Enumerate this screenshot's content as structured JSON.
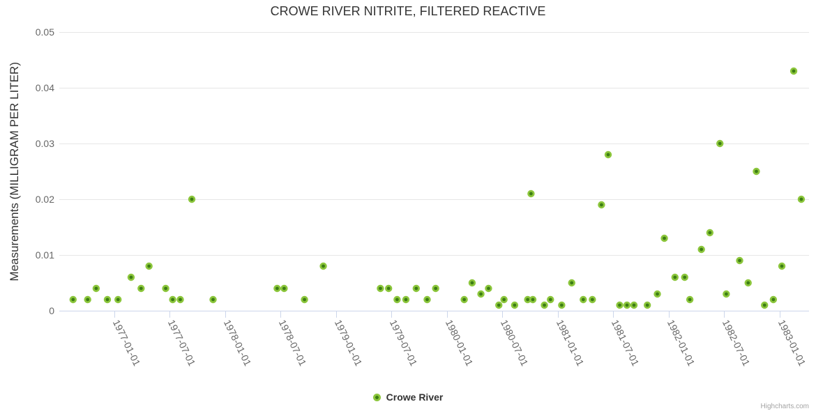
{
  "title": "CROWE RIVER NITRITE, FILTERED REACTIVE",
  "credits": "Highcharts.com",
  "colors": {
    "marker_outer": "#8cc63c",
    "marker_inner": "#3c7d14",
    "grid_line": "#e6e6e6",
    "axis_line": "#ccd6eb",
    "tick_label": "#666666",
    "title_text": "#333333"
  },
  "chart_data": {
    "type": "scatter",
    "title": "CROWE RIVER NITRITE, FILTERED REACTIVE",
    "xlabel": "",
    "ylabel": "Measurements (MILLIGRAM PER LITER)",
    "ylim": [
      0,
      0.05
    ],
    "grid": "horizontal",
    "legend_position": "bottom-center",
    "yticks": [
      {
        "v": 0,
        "label": "0"
      },
      {
        "v": 0.01,
        "label": "0.01"
      },
      {
        "v": 0.02,
        "label": "0.02"
      },
      {
        "v": 0.03,
        "label": "0.03"
      },
      {
        "v": 0.04,
        "label": "0.04"
      },
      {
        "v": 0.05,
        "label": "0.05"
      }
    ],
    "xticks": [
      "1977-01-01",
      "1977-07-01",
      "1978-01-01",
      "1978-07-01",
      "1979-01-01",
      "1979-07-01",
      "1980-01-01",
      "1980-07-01",
      "1981-01-01",
      "1981-07-01",
      "1982-01-01",
      "1982-07-01",
      "1983-01-01"
    ],
    "series": [
      {
        "name": "Crowe River",
        "points": [
          [
            "1976-08-18",
            0.002
          ],
          [
            "1976-10-05",
            0.002
          ],
          [
            "1976-11-02",
            0.004
          ],
          [
            "1976-12-09",
            0.002
          ],
          [
            "1977-01-13",
            0.002
          ],
          [
            "1977-02-25",
            0.006
          ],
          [
            "1977-03-30",
            0.004
          ],
          [
            "1977-04-25",
            0.008
          ],
          [
            "1977-06-19",
            0.004
          ],
          [
            "1977-07-12",
            0.002
          ],
          [
            "1977-08-06",
            0.002
          ],
          [
            "1977-09-13",
            0.02
          ],
          [
            "1977-11-22",
            0.002
          ],
          [
            "1978-06-21",
            0.004
          ],
          [
            "1978-07-14",
            0.004
          ],
          [
            "1978-09-19",
            0.002
          ],
          [
            "1978-11-20",
            0.008
          ],
          [
            "1979-05-27",
            0.004
          ],
          [
            "1979-06-23",
            0.004
          ],
          [
            "1979-07-21",
            0.002
          ],
          [
            "1979-08-19",
            0.002
          ],
          [
            "1979-09-22",
            0.004
          ],
          [
            "1979-10-28",
            0.002
          ],
          [
            "1979-11-25",
            0.004
          ],
          [
            "1980-02-27",
            0.002
          ],
          [
            "1980-03-24",
            0.005
          ],
          [
            "1980-04-22",
            0.003
          ],
          [
            "1980-05-17",
            0.004
          ],
          [
            "1980-06-20",
            0.001
          ],
          [
            "1980-07-07",
            0.002
          ],
          [
            "1980-08-11",
            0.001
          ],
          [
            "1980-09-23",
            0.002
          ],
          [
            "1980-10-04",
            0.021
          ],
          [
            "1980-10-10",
            0.002
          ],
          [
            "1980-11-17",
            0.001
          ],
          [
            "1980-12-07",
            0.002
          ],
          [
            "1981-01-13",
            0.001
          ],
          [
            "1981-02-15",
            0.005
          ],
          [
            "1981-03-25",
            0.002
          ],
          [
            "1981-04-24",
            0.002
          ],
          [
            "1981-05-24",
            0.019
          ],
          [
            "1981-06-15",
            0.028
          ],
          [
            "1981-07-23",
            0.001
          ],
          [
            "1981-08-16",
            0.001
          ],
          [
            "1981-09-08",
            0.001
          ],
          [
            "1981-10-22",
            0.001
          ],
          [
            "1981-11-24",
            0.003
          ],
          [
            "1981-12-17",
            0.013
          ],
          [
            "1982-01-21",
            0.006
          ],
          [
            "1982-02-22",
            0.006
          ],
          [
            "1982-03-11",
            0.002
          ],
          [
            "1982-04-18",
            0.011
          ],
          [
            "1982-05-16",
            0.014
          ],
          [
            "1982-06-18",
            0.03
          ],
          [
            "1982-07-09",
            0.003
          ],
          [
            "1982-08-22",
            0.009
          ],
          [
            "1982-09-19",
            0.005
          ],
          [
            "1982-10-16",
            0.025
          ],
          [
            "1982-11-12",
            0.001
          ],
          [
            "1982-12-11",
            0.002
          ],
          [
            "1983-01-08",
            0.008
          ],
          [
            "1983-02-16",
            0.043
          ],
          [
            "1983-03-13",
            0.02
          ]
        ]
      }
    ]
  }
}
